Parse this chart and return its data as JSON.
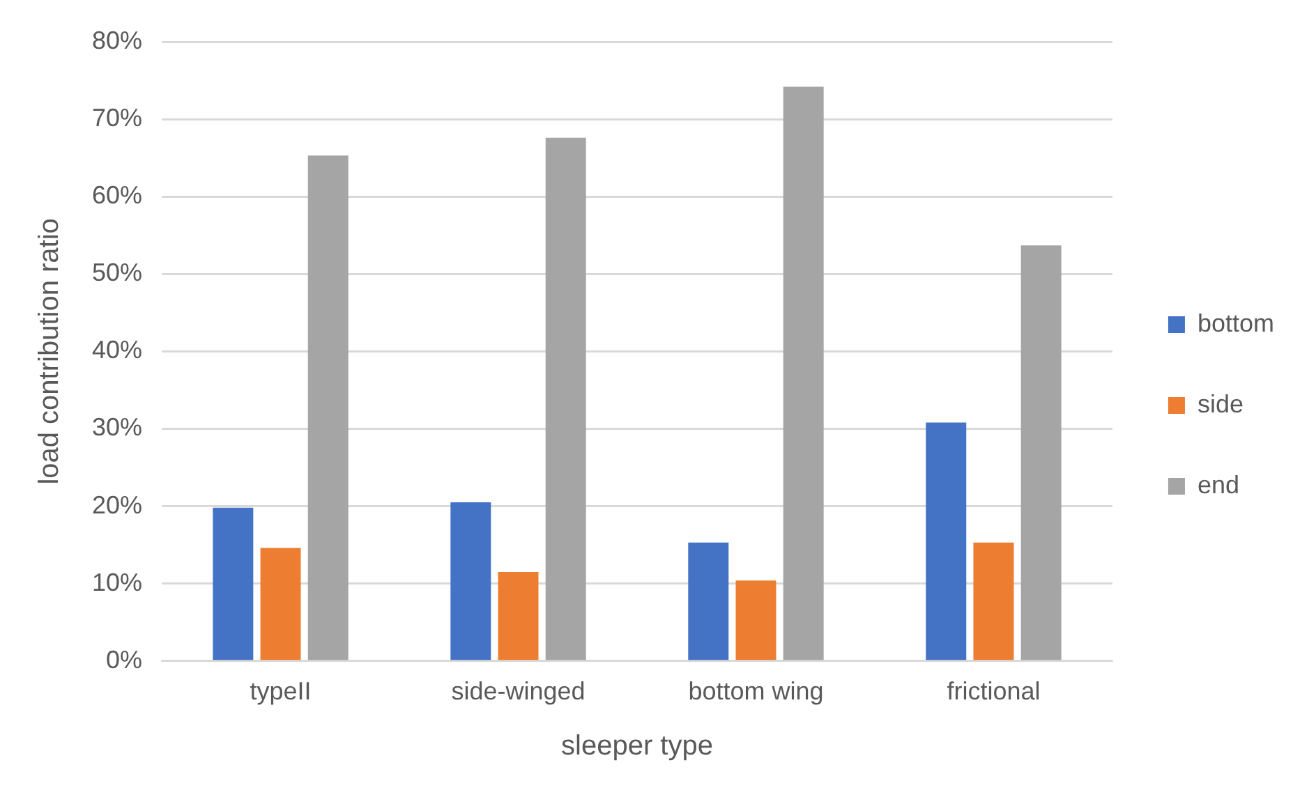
{
  "chart_data": {
    "type": "bar",
    "xlabel": "sleeper type",
    "ylabel": "load contribution ratio",
    "categories": [
      "typeII",
      "side-winged",
      "bottom wing",
      "frictional"
    ],
    "series": [
      {
        "name": "bottom",
        "color": "#4472c4",
        "values": [
          19.8,
          20.5,
          15.3,
          30.8
        ]
      },
      {
        "name": "side",
        "color": "#ed7d31",
        "values": [
          14.6,
          11.5,
          10.4,
          15.3
        ]
      },
      {
        "name": "end",
        "color": "#a5a5a5",
        "values": [
          65.3,
          67.6,
          74.2,
          53.7
        ]
      }
    ],
    "ylim": [
      0,
      80
    ],
    "yticks": [
      {
        "value": 0,
        "label": "0%"
      },
      {
        "value": 10,
        "label": "10%"
      },
      {
        "value": 20,
        "label": "20%"
      },
      {
        "value": 30,
        "label": "30%"
      },
      {
        "value": 40,
        "label": "40%"
      },
      {
        "value": 50,
        "label": "50%"
      },
      {
        "value": 60,
        "label": "60%"
      },
      {
        "value": 70,
        "label": "70%"
      },
      {
        "value": 80,
        "label": "80%"
      }
    ],
    "grid": "y",
    "legend": "right"
  }
}
